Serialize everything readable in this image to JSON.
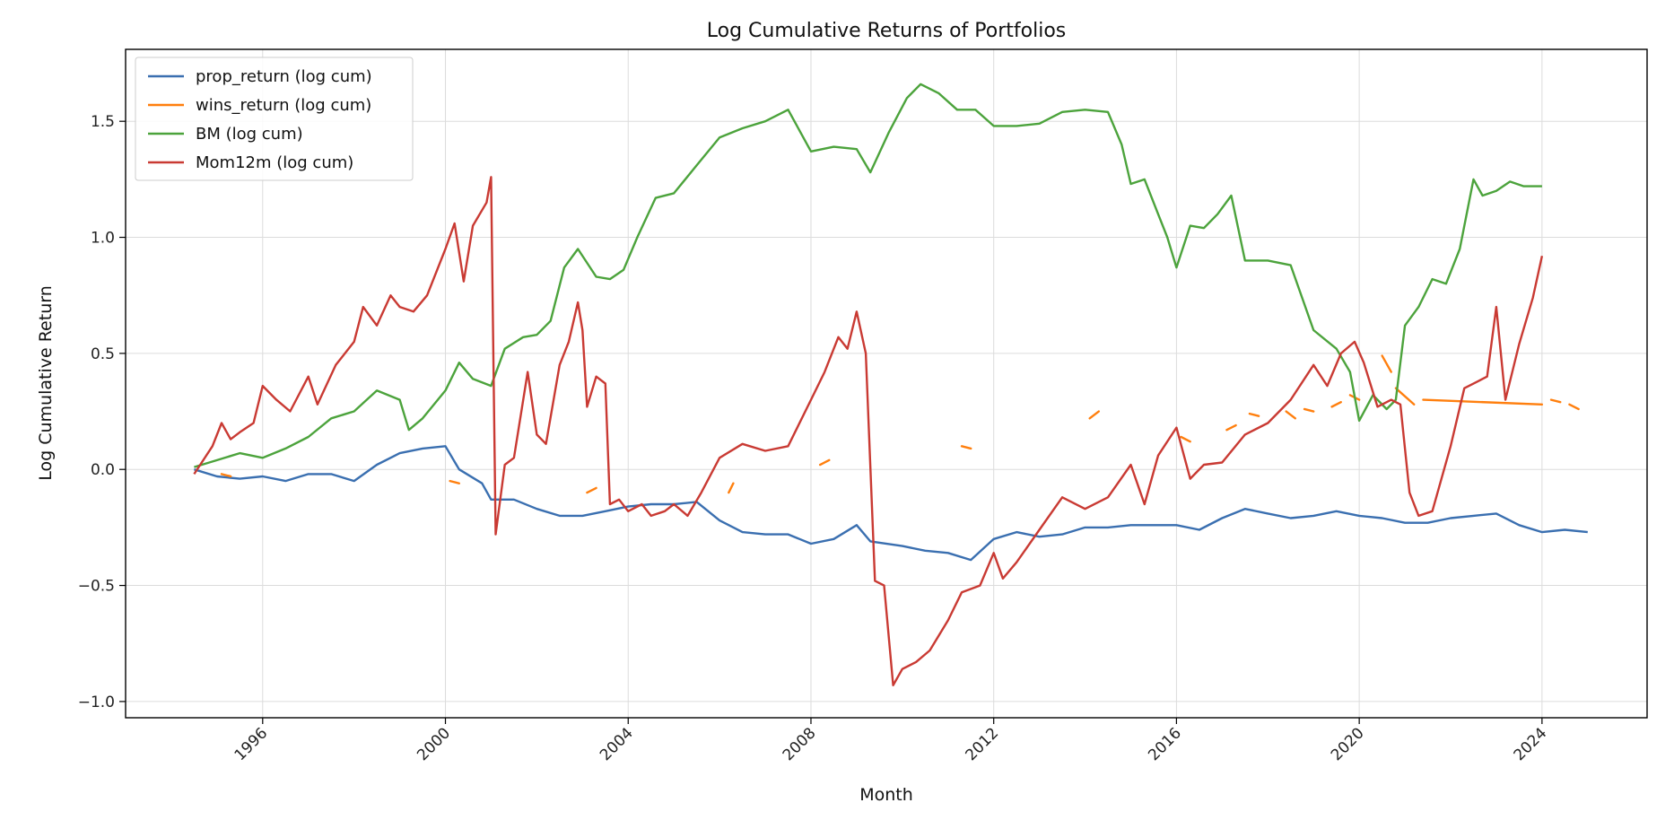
{
  "chart_data": {
    "type": "line",
    "title": "Log Cumulative Returns of Portfolios",
    "xlabel": "Month",
    "ylabel": "Log Cumulative Return",
    "xlim": [
      1993.0,
      2026.3
    ],
    "ylim": [
      -1.07,
      1.81
    ],
    "x_ticks": [
      1996,
      2000,
      2004,
      2008,
      2012,
      2016,
      2020,
      2024
    ],
    "y_ticks": [
      -1.0,
      -0.5,
      0.0,
      0.5,
      1.0,
      1.5
    ],
    "y_tick_labels": [
      "−1.0",
      "−0.5",
      "0.0",
      "0.5",
      "1.0",
      "1.5"
    ],
    "grid": true,
    "legend_position": "top-left",
    "series": [
      {
        "name": "prop_return (log cum)",
        "color": "#3a6fb0",
        "style": "solid",
        "points": [
          [
            1994.5,
            0.0
          ],
          [
            1995.0,
            -0.03
          ],
          [
            1995.5,
            -0.04
          ],
          [
            1996.0,
            -0.03
          ],
          [
            1996.5,
            -0.05
          ],
          [
            1997.0,
            -0.02
          ],
          [
            1997.5,
            -0.02
          ],
          [
            1998.0,
            -0.05
          ],
          [
            1998.5,
            0.02
          ],
          [
            1999.0,
            0.07
          ],
          [
            1999.5,
            0.09
          ],
          [
            2000.0,
            0.1
          ],
          [
            2000.3,
            0.0
          ],
          [
            2000.8,
            -0.06
          ],
          [
            2001.0,
            -0.13
          ],
          [
            2001.5,
            -0.13
          ],
          [
            2002.0,
            -0.17
          ],
          [
            2002.5,
            -0.2
          ],
          [
            2003.0,
            -0.2
          ],
          [
            2003.5,
            -0.18
          ],
          [
            2004.0,
            -0.16
          ],
          [
            2004.5,
            -0.15
          ],
          [
            2005.0,
            -0.15
          ],
          [
            2005.5,
            -0.14
          ],
          [
            2006.0,
            -0.22
          ],
          [
            2006.5,
            -0.27
          ],
          [
            2007.0,
            -0.28
          ],
          [
            2007.5,
            -0.28
          ],
          [
            2008.0,
            -0.32
          ],
          [
            2008.5,
            -0.3
          ],
          [
            2009.0,
            -0.24
          ],
          [
            2009.3,
            -0.31
          ],
          [
            2010.0,
            -0.33
          ],
          [
            2010.5,
            -0.35
          ],
          [
            2011.0,
            -0.36
          ],
          [
            2011.5,
            -0.39
          ],
          [
            2012.0,
            -0.3
          ],
          [
            2012.5,
            -0.27
          ],
          [
            2013.0,
            -0.29
          ],
          [
            2013.5,
            -0.28
          ],
          [
            2014.0,
            -0.25
          ],
          [
            2014.5,
            -0.25
          ],
          [
            2015.0,
            -0.24
          ],
          [
            2015.5,
            -0.24
          ],
          [
            2016.0,
            -0.24
          ],
          [
            2016.5,
            -0.26
          ],
          [
            2017.0,
            -0.21
          ],
          [
            2017.5,
            -0.17
          ],
          [
            2018.0,
            -0.19
          ],
          [
            2018.5,
            -0.21
          ],
          [
            2019.0,
            -0.2
          ],
          [
            2019.5,
            -0.18
          ],
          [
            2020.0,
            -0.2
          ],
          [
            2020.5,
            -0.21
          ],
          [
            2021.0,
            -0.23
          ],
          [
            2021.5,
            -0.23
          ],
          [
            2022.0,
            -0.21
          ],
          [
            2022.5,
            -0.2
          ],
          [
            2023.0,
            -0.19
          ],
          [
            2023.5,
            -0.24
          ],
          [
            2024.0,
            -0.27
          ],
          [
            2024.5,
            -0.26
          ],
          [
            2025.0,
            -0.27
          ]
        ]
      },
      {
        "name": "wins_return (log cum)",
        "color": "#ff7f0e",
        "style": "dashed",
        "points": [
          [
            1995.1,
            -0.02
          ],
          [
            1995.3,
            -0.03
          ],
          [
            2000.1,
            -0.05
          ],
          [
            2000.3,
            -0.06
          ],
          [
            2003.1,
            -0.1
          ],
          [
            2003.3,
            -0.08
          ],
          [
            2006.2,
            -0.1
          ],
          [
            2006.3,
            -0.06
          ],
          [
            2008.2,
            0.02
          ],
          [
            2008.4,
            0.04
          ],
          [
            2011.3,
            0.1
          ],
          [
            2011.5,
            0.09
          ],
          [
            2014.1,
            0.22
          ],
          [
            2014.3,
            0.25
          ],
          [
            2016.1,
            0.14
          ],
          [
            2016.3,
            0.12
          ],
          [
            2017.1,
            0.17
          ],
          [
            2017.3,
            0.19
          ],
          [
            2017.6,
            0.24
          ],
          [
            2017.8,
            0.23
          ],
          [
            2018.4,
            0.25
          ],
          [
            2018.6,
            0.22
          ],
          [
            2018.8,
            0.26
          ],
          [
            2019.0,
            0.25
          ],
          [
            2019.4,
            0.27
          ],
          [
            2019.6,
            0.29
          ],
          [
            2019.8,
            0.32
          ],
          [
            2020.0,
            0.3
          ],
          [
            2020.5,
            0.49
          ],
          [
            2020.7,
            0.42
          ],
          [
            2020.8,
            0.35
          ],
          [
            2021.2,
            0.28
          ],
          [
            2021.4,
            0.3
          ],
          [
            2024.0,
            0.28
          ],
          [
            2024.2,
            0.3
          ],
          [
            2024.4,
            0.29
          ],
          [
            2024.6,
            0.28
          ],
          [
            2024.8,
            0.26
          ],
          [
            2025.0,
            0.25
          ]
        ]
      },
      {
        "name": "BM (log cum)",
        "color": "#4ca33c",
        "style": "solid",
        "points": [
          [
            1994.5,
            0.01
          ],
          [
            1995.0,
            0.04
          ],
          [
            1995.5,
            0.07
          ],
          [
            1996.0,
            0.05
          ],
          [
            1996.5,
            0.09
          ],
          [
            1997.0,
            0.14
          ],
          [
            1997.5,
            0.22
          ],
          [
            1998.0,
            0.25
          ],
          [
            1998.5,
            0.34
          ],
          [
            1999.0,
            0.3
          ],
          [
            1999.2,
            0.17
          ],
          [
            1999.5,
            0.22
          ],
          [
            2000.0,
            0.34
          ],
          [
            2000.3,
            0.46
          ],
          [
            2000.6,
            0.39
          ],
          [
            2001.0,
            0.36
          ],
          [
            2001.3,
            0.52
          ],
          [
            2001.7,
            0.57
          ],
          [
            2002.0,
            0.58
          ],
          [
            2002.3,
            0.64
          ],
          [
            2002.6,
            0.87
          ],
          [
            2002.9,
            0.95
          ],
          [
            2003.3,
            0.83
          ],
          [
            2003.6,
            0.82
          ],
          [
            2003.9,
            0.86
          ],
          [
            2004.2,
            1.0
          ],
          [
            2004.6,
            1.17
          ],
          [
            2005.0,
            1.19
          ],
          [
            2005.5,
            1.31
          ],
          [
            2006.0,
            1.43
          ],
          [
            2006.5,
            1.47
          ],
          [
            2007.0,
            1.5
          ],
          [
            2007.5,
            1.55
          ],
          [
            2008.0,
            1.37
          ],
          [
            2008.5,
            1.39
          ],
          [
            2009.0,
            1.38
          ],
          [
            2009.3,
            1.28
          ],
          [
            2009.7,
            1.45
          ],
          [
            2010.1,
            1.6
          ],
          [
            2010.4,
            1.66
          ],
          [
            2010.8,
            1.62
          ],
          [
            2011.2,
            1.55
          ],
          [
            2011.6,
            1.55
          ],
          [
            2012.0,
            1.48
          ],
          [
            2012.5,
            1.48
          ],
          [
            2013.0,
            1.49
          ],
          [
            2013.5,
            1.54
          ],
          [
            2014.0,
            1.55
          ],
          [
            2014.5,
            1.54
          ],
          [
            2014.8,
            1.4
          ],
          [
            2015.0,
            1.23
          ],
          [
            2015.3,
            1.25
          ],
          [
            2015.6,
            1.1
          ],
          [
            2015.8,
            1.0
          ],
          [
            2016.0,
            0.87
          ],
          [
            2016.3,
            1.05
          ],
          [
            2016.6,
            1.04
          ],
          [
            2016.9,
            1.1
          ],
          [
            2017.2,
            1.18
          ],
          [
            2017.5,
            0.9
          ],
          [
            2018.0,
            0.9
          ],
          [
            2018.5,
            0.88
          ],
          [
            2019.0,
            0.6
          ],
          [
            2019.5,
            0.52
          ],
          [
            2019.8,
            0.42
          ],
          [
            2020.0,
            0.21
          ],
          [
            2020.3,
            0.32
          ],
          [
            2020.6,
            0.26
          ],
          [
            2020.8,
            0.3
          ],
          [
            2021.0,
            0.62
          ],
          [
            2021.3,
            0.7
          ],
          [
            2021.6,
            0.82
          ],
          [
            2021.9,
            0.8
          ],
          [
            2022.2,
            0.95
          ],
          [
            2022.5,
            1.25
          ],
          [
            2022.7,
            1.18
          ],
          [
            2023.0,
            1.2
          ],
          [
            2023.3,
            1.24
          ],
          [
            2023.6,
            1.22
          ],
          [
            2024.0,
            1.22
          ]
        ]
      },
      {
        "name": "Mom12m (log cum)",
        "color": "#c93a33",
        "style": "solid",
        "points": [
          [
            1994.5,
            -0.02
          ],
          [
            1994.9,
            0.1
          ],
          [
            1995.1,
            0.2
          ],
          [
            1995.3,
            0.13
          ],
          [
            1995.5,
            0.16
          ],
          [
            1995.8,
            0.2
          ],
          [
            1996.0,
            0.36
          ],
          [
            1996.3,
            0.3
          ],
          [
            1996.6,
            0.25
          ],
          [
            1997.0,
            0.4
          ],
          [
            1997.2,
            0.28
          ],
          [
            1997.6,
            0.45
          ],
          [
            1998.0,
            0.55
          ],
          [
            1998.2,
            0.7
          ],
          [
            1998.5,
            0.62
          ],
          [
            1998.8,
            0.75
          ],
          [
            1999.0,
            0.7
          ],
          [
            1999.3,
            0.68
          ],
          [
            1999.6,
            0.75
          ],
          [
            2000.0,
            0.95
          ],
          [
            2000.2,
            1.06
          ],
          [
            2000.4,
            0.81
          ],
          [
            2000.6,
            1.05
          ],
          [
            2000.9,
            1.15
          ],
          [
            2001.0,
            1.26
          ],
          [
            2001.1,
            -0.28
          ],
          [
            2001.3,
            0.02
          ],
          [
            2001.5,
            0.05
          ],
          [
            2001.8,
            0.42
          ],
          [
            2002.0,
            0.15
          ],
          [
            2002.2,
            0.11
          ],
          [
            2002.5,
            0.45
          ],
          [
            2002.7,
            0.55
          ],
          [
            2002.9,
            0.72
          ],
          [
            2003.0,
            0.6
          ],
          [
            2003.1,
            0.27
          ],
          [
            2003.3,
            0.4
          ],
          [
            2003.5,
            0.37
          ],
          [
            2003.6,
            -0.15
          ],
          [
            2003.8,
            -0.13
          ],
          [
            2004.0,
            -0.18
          ],
          [
            2004.3,
            -0.15
          ],
          [
            2004.5,
            -0.2
          ],
          [
            2004.8,
            -0.18
          ],
          [
            2005.0,
            -0.15
          ],
          [
            2005.3,
            -0.2
          ],
          [
            2005.6,
            -0.1
          ],
          [
            2006.0,
            0.05
          ],
          [
            2006.5,
            0.11
          ],
          [
            2007.0,
            0.08
          ],
          [
            2007.5,
            0.1
          ],
          [
            2008.0,
            0.3
          ],
          [
            2008.3,
            0.42
          ],
          [
            2008.6,
            0.57
          ],
          [
            2008.8,
            0.52
          ],
          [
            2009.0,
            0.68
          ],
          [
            2009.2,
            0.5
          ],
          [
            2009.4,
            -0.48
          ],
          [
            2009.6,
            -0.5
          ],
          [
            2009.8,
            -0.93
          ],
          [
            2010.0,
            -0.86
          ],
          [
            2010.3,
            -0.83
          ],
          [
            2010.6,
            -0.78
          ],
          [
            2011.0,
            -0.65
          ],
          [
            2011.3,
            -0.53
          ],
          [
            2011.7,
            -0.5
          ],
          [
            2012.0,
            -0.36
          ],
          [
            2012.2,
            -0.47
          ],
          [
            2012.5,
            -0.4
          ],
          [
            2013.0,
            -0.26
          ],
          [
            2013.5,
            -0.12
          ],
          [
            2014.0,
            -0.17
          ],
          [
            2014.5,
            -0.12
          ],
          [
            2015.0,
            0.02
          ],
          [
            2015.3,
            -0.15
          ],
          [
            2015.6,
            0.06
          ],
          [
            2016.0,
            0.18
          ],
          [
            2016.3,
            -0.04
          ],
          [
            2016.6,
            0.02
          ],
          [
            2017.0,
            0.03
          ],
          [
            2017.5,
            0.15
          ],
          [
            2018.0,
            0.2
          ],
          [
            2018.5,
            0.3
          ],
          [
            2019.0,
            0.45
          ],
          [
            2019.3,
            0.36
          ],
          [
            2019.6,
            0.5
          ],
          [
            2019.9,
            0.55
          ],
          [
            2020.1,
            0.46
          ],
          [
            2020.4,
            0.27
          ],
          [
            2020.7,
            0.3
          ],
          [
            2020.9,
            0.28
          ],
          [
            2021.1,
            -0.1
          ],
          [
            2021.3,
            -0.2
          ],
          [
            2021.6,
            -0.18
          ],
          [
            2022.0,
            0.1
          ],
          [
            2022.3,
            0.35
          ],
          [
            2022.6,
            0.38
          ],
          [
            2022.8,
            0.4
          ],
          [
            2023.0,
            0.7
          ],
          [
            2023.2,
            0.3
          ],
          [
            2023.5,
            0.54
          ],
          [
            2023.8,
            0.74
          ],
          [
            2024.0,
            0.92
          ]
        ]
      }
    ]
  }
}
